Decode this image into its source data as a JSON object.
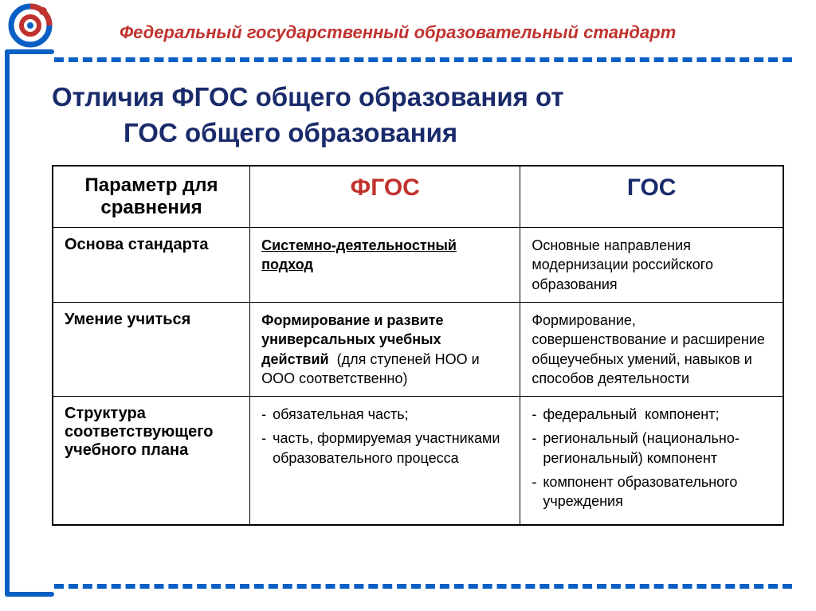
{
  "theme": {
    "accent_blue": "#0a5fc4",
    "accent_red": "#c0322e",
    "title_navy": "#1a2b6b",
    "fgos_red": "#c0322e",
    "gos_navy": "#1a2b6b",
    "text": "#000000",
    "dash_color": "#0a5fc4"
  },
  "header": {
    "banner_text": "Федеральный государственный образовательный стандарт"
  },
  "title": {
    "line1": "Отличия ФГОС общего образования от",
    "line2": "ГОС общего образования"
  },
  "table": {
    "head": {
      "param": "Параметр для сравнения",
      "fgos": "ФГОС",
      "gos": "ГОС"
    },
    "rows": [
      {
        "label": "Основа стандарта",
        "fgos_html": "<span class='underline'>Системно-деятельностный подход</span>",
        "gos_html": "Основные направления модернизации российского образования"
      },
      {
        "label": "Умение учиться",
        "fgos_html": "<span class='bold'>Формирование и развите универсальных учебных действий</span>&nbsp; (для ступеней НОО и ООО соответственно)",
        "gos_html": "Формирование, совершенствование и расширение общеучебных умений, навыков и способов деятельности"
      },
      {
        "label": "Структура соответствующего учебного плана",
        "fgos_html": "<ul class='bullet-list'><li>обязательная часть;</li><li>часть, формируемая участниками образовательного процесса</li></ul>",
        "gos_html": "<ul class='bullet-list'><li>федеральный&nbsp; компонент;</li><li>региональный (национально-региональный) компонент</li><li>компонент образовательного учреждения</li></ul>"
      }
    ]
  }
}
